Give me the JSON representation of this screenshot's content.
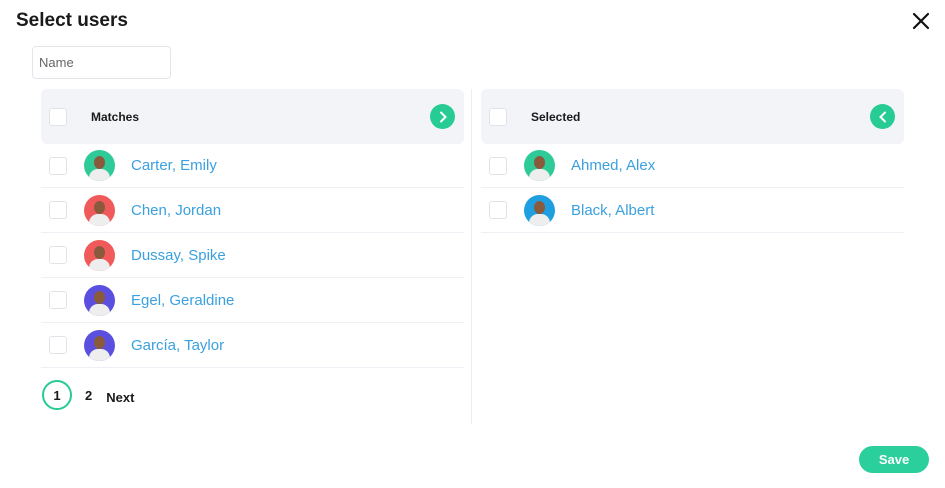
{
  "dialog": {
    "title": "Select users",
    "close_icon": "close-icon"
  },
  "search": {
    "placeholder": "Name",
    "value": ""
  },
  "matches": {
    "header": "Matches",
    "move_icon": "chevron-right-icon",
    "items": [
      {
        "name": "Carter, Emily",
        "avatar_color": "#2ecb98"
      },
      {
        "name": "Chen, Jordan",
        "avatar_color": "#f05a5a"
      },
      {
        "name": "Dussay, Spike",
        "avatar_color": "#f05a5a"
      },
      {
        "name": "Egel, Geraldine",
        "avatar_color": "#5b4fe0"
      },
      {
        "name": "García, Taylor",
        "avatar_color": "#5b4fe0"
      }
    ]
  },
  "selected": {
    "header": "Selected",
    "move_icon": "chevron-left-icon",
    "items": [
      {
        "name": "Ahmed, Alex",
        "avatar_color": "#2ecb98"
      },
      {
        "name": "Black, Albert",
        "avatar_color": "#1f9ee0"
      }
    ]
  },
  "pagination": {
    "current": "1",
    "page2": "2",
    "next": "Next"
  },
  "save_label": "Save",
  "colors": {
    "accent": "#27cc95",
    "link": "#3aa0e0"
  }
}
